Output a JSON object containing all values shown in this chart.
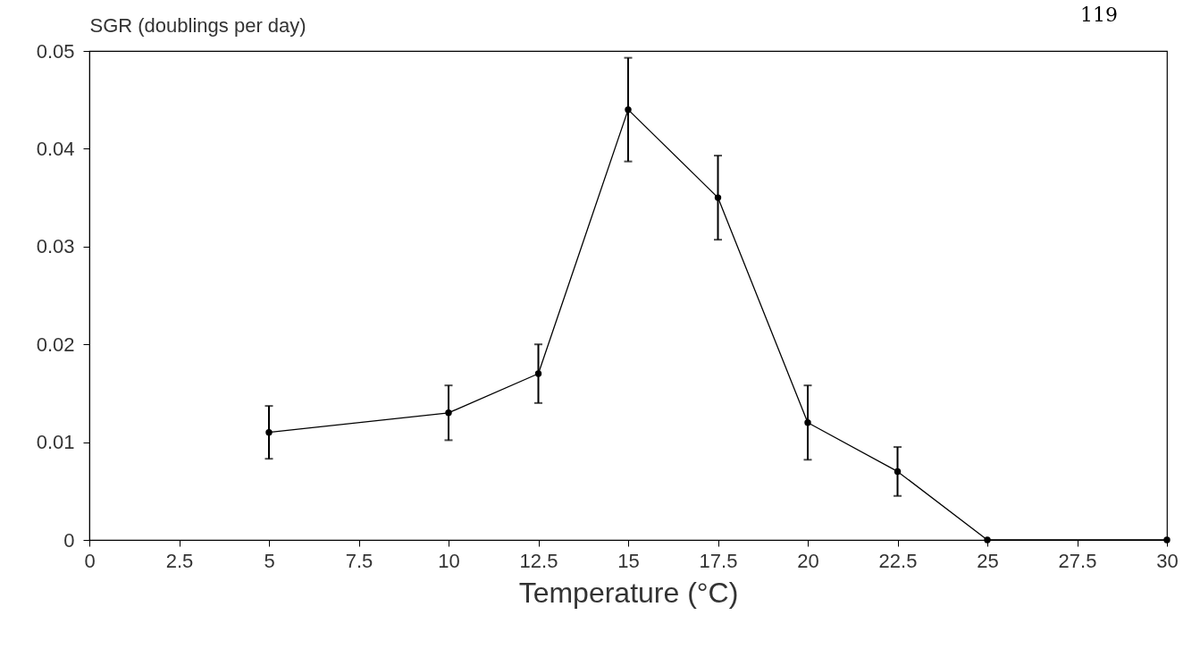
{
  "chart_data": {
    "type": "line",
    "xlabel": "Temperature (°C)",
    "ylabel": "SGR (doublings per day)",
    "x": [
      5,
      10,
      12.5,
      15,
      17.5,
      20,
      22.5,
      25,
      30
    ],
    "series": [
      {
        "color": "#000000",
        "values": [
          0.011,
          0.013,
          0.017,
          0.044,
          0.035,
          0.012,
          0.007,
          0,
          0
        ],
        "errors": [
          0.0027,
          0.0028,
          0.003,
          0.0053,
          0.0043,
          0.0038,
          0.0025,
          null,
          null
        ]
      }
    ],
    "xlim": [
      0,
      30
    ],
    "xticks": [
      0,
      2.5,
      5,
      7.5,
      10,
      12.5,
      15,
      17.5,
      20,
      22.5,
      25,
      27.5,
      30
    ],
    "ylim": [
      0,
      0.05
    ],
    "yticks": [
      0,
      0.01,
      0.02,
      0.03,
      0.04,
      0.05
    ],
    "marker": "circle",
    "line_style": "solid",
    "grid": false,
    "annotations": [
      "119"
    ]
  }
}
